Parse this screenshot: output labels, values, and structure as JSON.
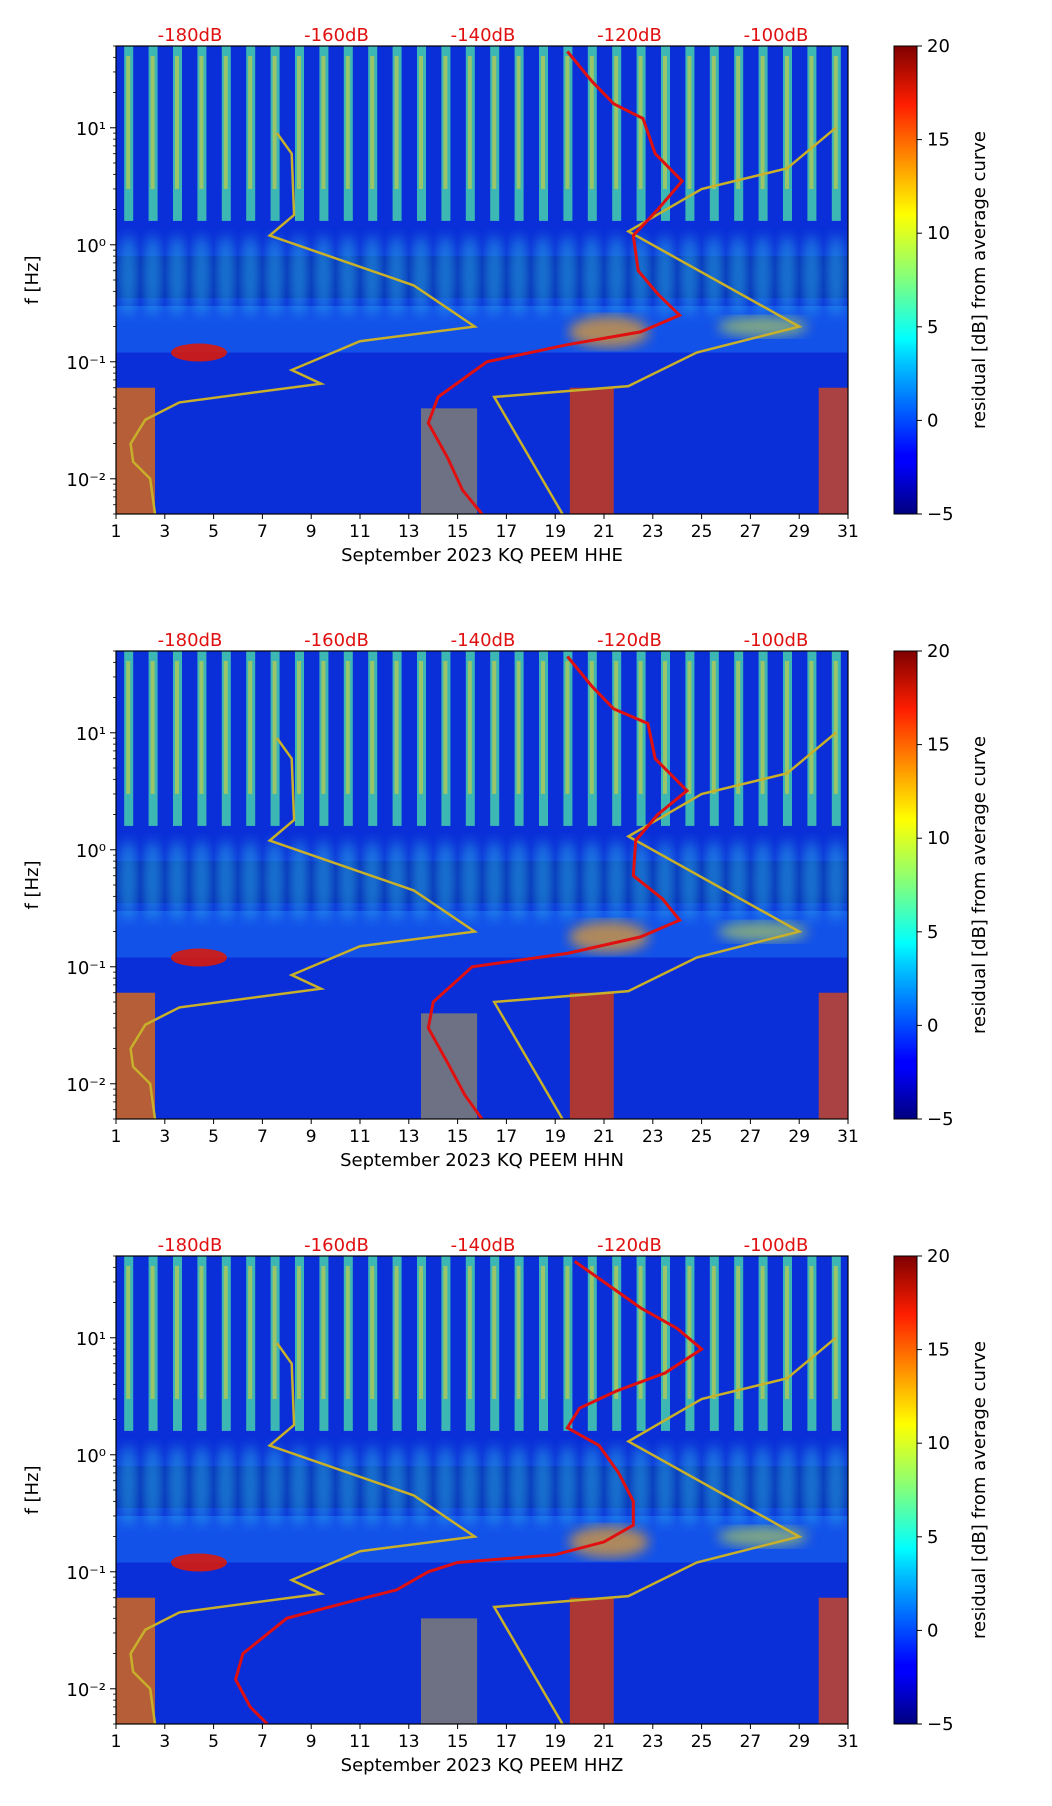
{
  "chart_data": [
    {
      "type": "heatmap",
      "xlabel": "September 2023 KQ PEEM  HHE",
      "ylabel": "f [Hz]",
      "x_ticks": [
        "1",
        "3",
        "5",
        "7",
        "9",
        "11",
        "13",
        "15",
        "17",
        "19",
        "21",
        "23",
        "25",
        "27",
        "29",
        "31"
      ],
      "xlim": [
        1,
        31
      ],
      "y_ticks": [
        "10⁻²",
        "10⁻¹",
        "10⁰",
        "10¹"
      ],
      "ylim": [
        0.005,
        50
      ],
      "yscale": "log",
      "top_axis_labels": [
        "-180dB",
        "-160dB",
        "-140dB",
        "-120dB",
        "-100dB"
      ],
      "colorbar": {
        "label": "residual [dB] from average curve",
        "ticks": [
          "−5",
          "0",
          "5",
          "10",
          "15",
          "20"
        ],
        "range": [
          -5,
          20
        ],
        "cmap": "jet"
      },
      "series": [
        {
          "name": "noise model (yellow)",
          "color": "#c8b02a",
          "points": [
            [
              7.6,
              9
            ],
            [
              8.2,
              6
            ],
            [
              8.3,
              1.8
            ],
            [
              7.3,
              1.2
            ],
            [
              13.2,
              0.45
            ],
            [
              15.7,
              0.2
            ],
            [
              11,
              0.15
            ],
            [
              8.2,
              0.085
            ],
            [
              9.4,
              0.065
            ],
            [
              3.6,
              0.045
            ],
            [
              2.2,
              0.032
            ],
            [
              1.6,
              0.02
            ],
            [
              1.7,
              0.014
            ],
            [
              2.4,
              0.01
            ],
            [
              2.6,
              0.005
            ]
          ]
        },
        {
          "name": "noise model 2 (yellow)",
          "color": "#c8b02a",
          "points": [
            [
              30.5,
              10
            ],
            [
              28.5,
              4.5
            ],
            [
              25,
              3
            ],
            [
              22,
              1.3
            ],
            [
              29,
              0.2
            ],
            [
              24.8,
              0.12
            ],
            [
              22,
              0.062
            ],
            [
              16.5,
              0.05
            ],
            [
              19.3,
              0.005
            ]
          ]
        },
        {
          "name": "PSD curve (red)",
          "color": "#e01010",
          "points": [
            [
              19.5,
              45
            ],
            [
              20.5,
              25
            ],
            [
              21.4,
              16
            ],
            [
              22.6,
              12
            ],
            [
              23.1,
              6
            ],
            [
              24.2,
              3.5
            ],
            [
              23.2,
              2
            ],
            [
              22.2,
              1.2
            ],
            [
              22.4,
              0.6
            ],
            [
              23.2,
              0.38
            ],
            [
              24.1,
              0.25
            ],
            [
              22.5,
              0.18
            ],
            [
              19.5,
              0.14
            ],
            [
              16.2,
              0.1
            ],
            [
              14.2,
              0.05
            ],
            [
              13.8,
              0.03
            ],
            [
              14.6,
              0.015
            ],
            [
              15.2,
              0.008
            ],
            [
              16,
              0.005
            ]
          ]
        }
      ]
    },
    {
      "type": "heatmap",
      "xlabel": "September 2023 KQ PEEM  HHN",
      "ylabel": "f [Hz]",
      "x_ticks": [
        "1",
        "3",
        "5",
        "7",
        "9",
        "11",
        "13",
        "15",
        "17",
        "19",
        "21",
        "23",
        "25",
        "27",
        "29",
        "31"
      ],
      "xlim": [
        1,
        31
      ],
      "y_ticks": [
        "10⁻²",
        "10⁻¹",
        "10⁰",
        "10¹"
      ],
      "ylim": [
        0.005,
        50
      ],
      "yscale": "log",
      "top_axis_labels": [
        "-180dB",
        "-160dB",
        "-140dB",
        "-120dB",
        "-100dB"
      ],
      "colorbar": {
        "label": "residual [dB] from average curve",
        "ticks": [
          "−5",
          "0",
          "5",
          "10",
          "15",
          "20"
        ],
        "range": [
          -5,
          20
        ],
        "cmap": "jet"
      },
      "series": [
        {
          "name": "noise model (yellow)",
          "color": "#c8b02a",
          "points": [
            [
              7.6,
              9
            ],
            [
              8.2,
              6
            ],
            [
              8.3,
              1.8
            ],
            [
              7.3,
              1.2
            ],
            [
              13.2,
              0.45
            ],
            [
              15.7,
              0.2
            ],
            [
              11,
              0.15
            ],
            [
              8.2,
              0.085
            ],
            [
              9.4,
              0.065
            ],
            [
              3.6,
              0.045
            ],
            [
              2.2,
              0.032
            ],
            [
              1.6,
              0.02
            ],
            [
              1.7,
              0.014
            ],
            [
              2.4,
              0.01
            ],
            [
              2.6,
              0.005
            ]
          ]
        },
        {
          "name": "noise model 2 (yellow)",
          "color": "#c8b02a",
          "points": [
            [
              30.5,
              10
            ],
            [
              28.5,
              4.5
            ],
            [
              25,
              3
            ],
            [
              22,
              1.3
            ],
            [
              29,
              0.2
            ],
            [
              24.8,
              0.12
            ],
            [
              22,
              0.062
            ],
            [
              16.5,
              0.05
            ],
            [
              19.3,
              0.005
            ]
          ]
        },
        {
          "name": "PSD curve (red)",
          "color": "#e01010",
          "points": [
            [
              19.5,
              45
            ],
            [
              20.5,
              25
            ],
            [
              21.4,
              16
            ],
            [
              22.8,
              12
            ],
            [
              23.1,
              6
            ],
            [
              24.4,
              3.2
            ],
            [
              23.2,
              2
            ],
            [
              22.3,
              1.2
            ],
            [
              22.2,
              0.6
            ],
            [
              23.4,
              0.38
            ],
            [
              24.1,
              0.25
            ],
            [
              22.5,
              0.18
            ],
            [
              19.5,
              0.13
            ],
            [
              15.6,
              0.1
            ],
            [
              14,
              0.05
            ],
            [
              13.8,
              0.03
            ],
            [
              14.6,
              0.015
            ],
            [
              15.3,
              0.008
            ],
            [
              16,
              0.005
            ]
          ]
        }
      ]
    },
    {
      "type": "heatmap",
      "xlabel": "September 2023 KQ PEEM  HHZ",
      "ylabel": "f [Hz]",
      "x_ticks": [
        "1",
        "3",
        "5",
        "7",
        "9",
        "11",
        "13",
        "15",
        "17",
        "19",
        "21",
        "23",
        "25",
        "27",
        "29",
        "31"
      ],
      "xlim": [
        1,
        31
      ],
      "y_ticks": [
        "10⁻²",
        "10⁻¹",
        "10⁰",
        "10¹"
      ],
      "ylim": [
        0.005,
        50
      ],
      "yscale": "log",
      "top_axis_labels": [
        "-180dB",
        "-160dB",
        "-140dB",
        "-120dB",
        "-100dB"
      ],
      "colorbar": {
        "label": "residual [dB] from average curve",
        "ticks": [
          "−5",
          "0",
          "5",
          "10",
          "15",
          "20"
        ],
        "range": [
          -5,
          20
        ],
        "cmap": "jet"
      },
      "series": [
        {
          "name": "noise model (yellow)",
          "color": "#c8b02a",
          "points": [
            [
              7.6,
              9
            ],
            [
              8.2,
              6
            ],
            [
              8.3,
              1.8
            ],
            [
              7.3,
              1.2
            ],
            [
              13.2,
              0.45
            ],
            [
              15.7,
              0.2
            ],
            [
              11,
              0.15
            ],
            [
              8.2,
              0.085
            ],
            [
              9.4,
              0.065
            ],
            [
              3.6,
              0.045
            ],
            [
              2.2,
              0.032
            ],
            [
              1.6,
              0.02
            ],
            [
              1.7,
              0.014
            ],
            [
              2.4,
              0.01
            ],
            [
              2.6,
              0.005
            ]
          ]
        },
        {
          "name": "noise model 2 (yellow)",
          "color": "#c8b02a",
          "points": [
            [
              30.5,
              10
            ],
            [
              28.5,
              4.5
            ],
            [
              25,
              3
            ],
            [
              22,
              1.3
            ],
            [
              29,
              0.2
            ],
            [
              24.8,
              0.12
            ],
            [
              22,
              0.062
            ],
            [
              16.5,
              0.05
            ],
            [
              19.3,
              0.005
            ]
          ]
        },
        {
          "name": "PSD curve (red)",
          "color": "#e01010",
          "points": [
            [
              19.8,
              45
            ],
            [
              21,
              30
            ],
            [
              22.5,
              18
            ],
            [
              24,
              12
            ],
            [
              25,
              8
            ],
            [
              23.5,
              5
            ],
            [
              21.5,
              3.5
            ],
            [
              20,
              2.5
            ],
            [
              19.5,
              1.7
            ],
            [
              20.8,
              1.2
            ],
            [
              21.6,
              0.7
            ],
            [
              22.2,
              0.4
            ],
            [
              22.2,
              0.25
            ],
            [
              21,
              0.18
            ],
            [
              19,
              0.14
            ],
            [
              15,
              0.12
            ],
            [
              13.8,
              0.1
            ],
            [
              12.5,
              0.07
            ],
            [
              10.5,
              0.055
            ],
            [
              8,
              0.04
            ],
            [
              6.2,
              0.02
            ],
            [
              5.9,
              0.012
            ],
            [
              6.5,
              0.007
            ],
            [
              7.2,
              0.005
            ]
          ]
        }
      ]
    }
  ]
}
